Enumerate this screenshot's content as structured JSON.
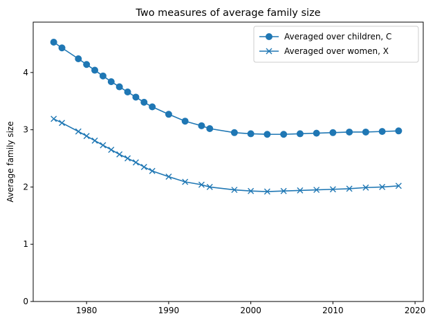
{
  "chart_data": {
    "type": "line",
    "title": "Two measures of average family size",
    "xlabel": "",
    "ylabel": "Average family size",
    "xlim": [
      1973.5,
      2021
    ],
    "ylim": [
      0,
      4.88
    ],
    "x_ticks": [
      1980,
      1990,
      2000,
      2010,
      2020
    ],
    "y_ticks": [
      0,
      1,
      2,
      3,
      4
    ],
    "grid": false,
    "legend_position": "top-right",
    "series": [
      {
        "name": "Averaged over children, C",
        "marker": "circle",
        "color": "#1f77b4",
        "points": [
          [
            1976,
            4.53
          ],
          [
            1977,
            4.43
          ],
          [
            1979,
            4.24
          ],
          [
            1980,
            4.14
          ],
          [
            1981,
            4.04
          ],
          [
            1982,
            3.94
          ],
          [
            1983,
            3.84
          ],
          [
            1984,
            3.75
          ],
          [
            1985,
            3.66
          ],
          [
            1986,
            3.57
          ],
          [
            1987,
            3.48
          ],
          [
            1988,
            3.4
          ],
          [
            1990,
            3.27
          ],
          [
            1992,
            3.15
          ],
          [
            1994,
            3.07
          ],
          [
            1995,
            3.02
          ],
          [
            1998,
            2.95
          ],
          [
            2000,
            2.93
          ],
          [
            2002,
            2.92
          ],
          [
            2004,
            2.92
          ],
          [
            2006,
            2.93
          ],
          [
            2008,
            2.94
          ],
          [
            2010,
            2.95
          ],
          [
            2012,
            2.96
          ],
          [
            2014,
            2.96
          ],
          [
            2016,
            2.97
          ],
          [
            2018,
            2.98
          ]
        ]
      },
      {
        "name": "Averaged over women, X",
        "marker": "x",
        "color": "#1f77b4",
        "points": [
          [
            1976,
            3.19
          ],
          [
            1977,
            3.12
          ],
          [
            1979,
            2.97
          ],
          [
            1980,
            2.89
          ],
          [
            1981,
            2.81
          ],
          [
            1982,
            2.73
          ],
          [
            1983,
            2.65
          ],
          [
            1984,
            2.57
          ],
          [
            1985,
            2.5
          ],
          [
            1986,
            2.43
          ],
          [
            1987,
            2.35
          ],
          [
            1988,
            2.28
          ],
          [
            1990,
            2.18
          ],
          [
            1992,
            2.09
          ],
          [
            1994,
            2.04
          ],
          [
            1995,
            2.0
          ],
          [
            1998,
            1.95
          ],
          [
            2000,
            1.93
          ],
          [
            2002,
            1.92
          ],
          [
            2004,
            1.93
          ],
          [
            2006,
            1.94
          ],
          [
            2008,
            1.95
          ],
          [
            2010,
            1.96
          ],
          [
            2012,
            1.97
          ],
          [
            2014,
            1.99
          ],
          [
            2016,
            2.0
          ],
          [
            2018,
            2.02
          ]
        ]
      }
    ]
  }
}
